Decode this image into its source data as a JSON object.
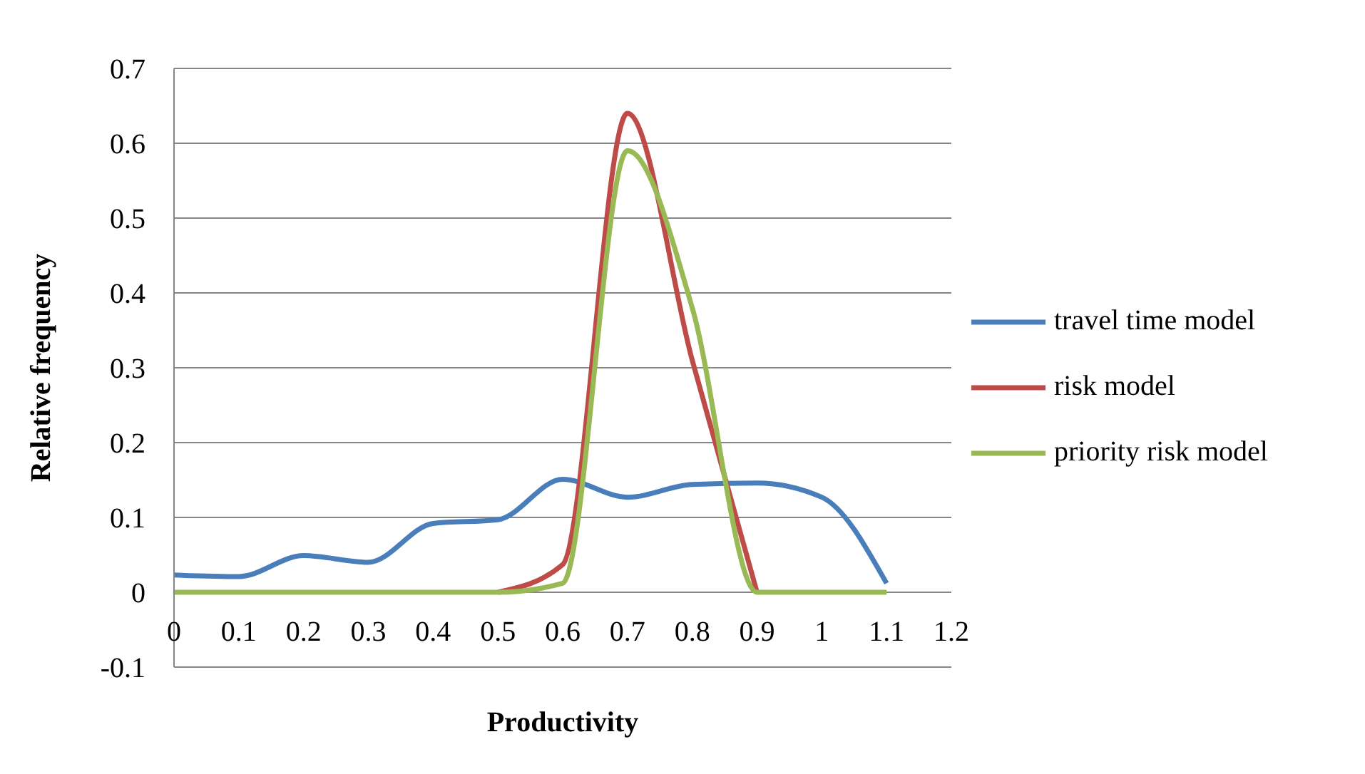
{
  "chart_data": {
    "type": "line",
    "xlabel": "Productivity",
    "ylabel": "Relative frequency",
    "x": [
      0,
      0.1,
      0.2,
      0.3,
      0.4,
      0.5,
      0.6,
      0.7,
      0.8,
      0.9,
      1,
      1.1
    ],
    "series": [
      {
        "name": "travel time model",
        "color": "#4a7ebb",
        "values": [
          0.023,
          0.021,
          0.049,
          0.04,
          0.092,
          0.097,
          0.151,
          0.127,
          0.144,
          0.146,
          0.127,
          0.012
        ]
      },
      {
        "name": "risk model",
        "color": "#be4b48",
        "values": [
          null,
          null,
          null,
          null,
          null,
          0,
          0.037,
          0.64,
          0.31,
          0,
          null,
          null
        ]
      },
      {
        "name": "priority risk model",
        "color": "#98b954",
        "values": [
          0,
          0,
          0,
          0,
          0,
          0,
          0.012,
          0.59,
          0.38,
          0,
          0,
          0
        ]
      }
    ],
    "xlim": [
      0,
      1.2
    ],
    "xticks": [
      0,
      0.1,
      0.2,
      0.3,
      0.4,
      0.5,
      0.6,
      0.7,
      0.8,
      0.9,
      1,
      1.1,
      1.2
    ],
    "ylim": [
      -0.1,
      0.7
    ],
    "yticks": [
      -0.1,
      0,
      0.1,
      0.2,
      0.3,
      0.4,
      0.5,
      0.6,
      0.7
    ],
    "grid": "y",
    "legend": "right",
    "marker": "none",
    "line_style": "solid"
  }
}
